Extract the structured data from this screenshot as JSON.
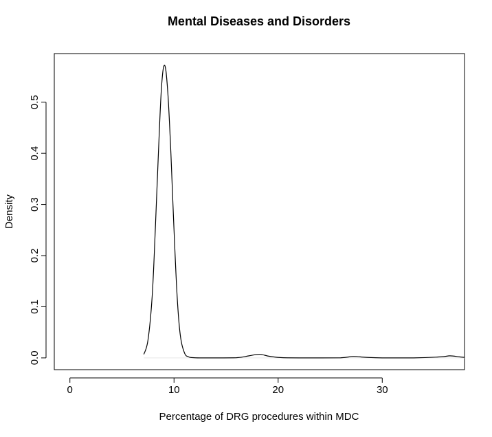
{
  "chart_data": {
    "type": "line",
    "title": "Mental Diseases and Disorders",
    "xlabel": "Percentage of DRG procedures within MDC",
    "ylabel": "Density",
    "xlim": [
      -1.5,
      37.9
    ],
    "ylim": [
      -0.023,
      0.595
    ],
    "x_ticks": [
      0,
      10,
      20,
      30
    ],
    "x_tick_labels": [
      "0",
      "10",
      "20",
      "30"
    ],
    "y_ticks": [
      0.0,
      0.1,
      0.2,
      0.3,
      0.4,
      0.5
    ],
    "y_tick_labels": [
      "0.0",
      "0.1",
      "0.2",
      "0.3",
      "0.4",
      "0.5"
    ],
    "grid": false,
    "series": [
      {
        "color": "#000000",
        "x": [
          7.1,
          7.5,
          7.9,
          8.2,
          8.5,
          8.8,
          9.1,
          9.4,
          9.7,
          10.0,
          10.3,
          10.6,
          11.0,
          11.4,
          11.8,
          12.5,
          14,
          16,
          17.2,
          18.2,
          19.2,
          20.5,
          23,
          26,
          27.2,
          28.4,
          30,
          33,
          35.6,
          36.5,
          37.4,
          37.9
        ],
        "y": [
          0.007,
          0.035,
          0.12,
          0.25,
          0.4,
          0.53,
          0.572,
          0.52,
          0.4,
          0.25,
          0.12,
          0.045,
          0.01,
          0.002,
          0.0005,
          0.0,
          0.0,
          0.0003,
          0.004,
          0.007,
          0.003,
          0.0003,
          0.0,
          0.0002,
          0.0028,
          0.0012,
          0.0,
          0.0,
          0.002,
          0.004,
          0.002,
          0.001
        ]
      }
    ]
  }
}
